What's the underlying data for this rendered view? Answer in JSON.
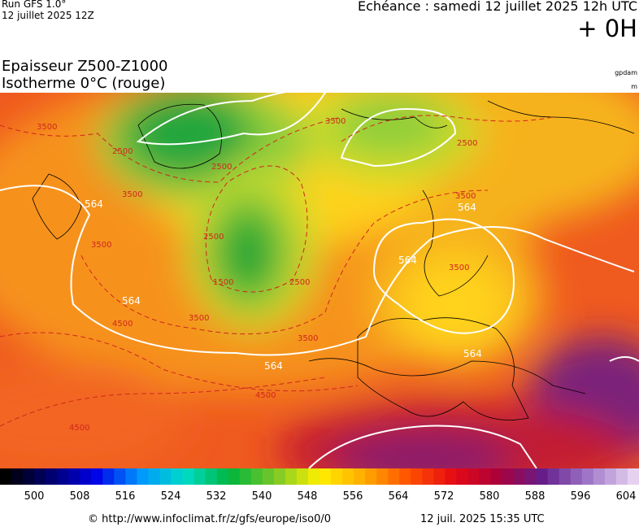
{
  "header": {
    "run": "Run GFS 1.0°",
    "run_date": "12 juillet 2025 12Z",
    "forecast": "Echéance : samedi 12 juillet 2025 12h UTC",
    "lead": "+ 0H"
  },
  "titles": {
    "line1": "Epaisseur Z500-Z1000",
    "line2": "Isotherme 0°C (rouge)",
    "unit1": "gpdam",
    "unit2": "m"
  },
  "map": {
    "contour_labels": [
      "564",
      "564",
      "564",
      "564",
      "564",
      "564",
      "3500",
      "2500",
      "2500",
      "3500",
      "3500",
      "2500",
      "1500",
      "2500",
      "3500",
      "4500",
      "3500",
      "4500",
      "4500",
      "3500",
      "3500",
      "2500",
      "3500"
    ]
  },
  "colorbar": {
    "labels": [
      500,
      508,
      516,
      524,
      532,
      540,
      548,
      556,
      564,
      572,
      580,
      588,
      596,
      604
    ]
  },
  "footer": {
    "source": "© http://www.infoclimat.fr/z/gfs/europe/iso0/0",
    "generated": "12 juil. 2025 15:35 UTC"
  }
}
